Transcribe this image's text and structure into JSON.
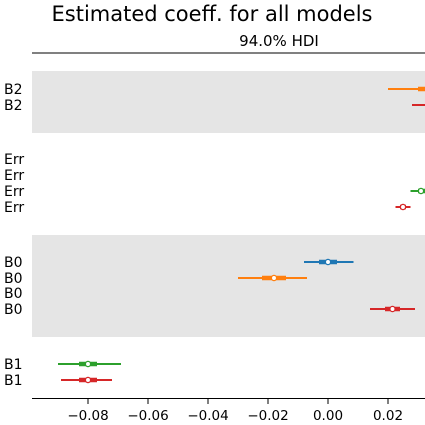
{
  "chart_data": {
    "type": "forest",
    "title": "Estimated coeff. for all models",
    "subtitle": "94.0% HDI",
    "xlim": [
      -0.098,
      0.032
    ],
    "x_ticks": [
      -0.08,
      -0.06,
      -0.04,
      -0.02,
      0.0,
      0.02
    ],
    "x_tick_labels": [
      "−0.08",
      "−0.06",
      "−0.04",
      "−0.02",
      "0.00",
      "0.02"
    ],
    "grid": false,
    "colors": {
      "blue": "#1f77b4",
      "orange": "#ff7f0e",
      "green": "#2ca02c",
      "red": "#d62728",
      "band": "#e5e5e5"
    },
    "groups": [
      {
        "name": "B2",
        "shaded": true,
        "rows": [
          {
            "label": "B2",
            "color": "#ff7f0e",
            "hdi_low": 0.02,
            "hdi_high": 0.04,
            "iqr_low": 0.03,
            "iqr_high": 0.04,
            "point": 0.04
          },
          {
            "label": "B2",
            "color": "#d62728",
            "hdi_low": 0.028,
            "hdi_high": 0.04,
            "iqr_low": 0.034,
            "iqr_high": 0.04,
            "point": 0.04
          }
        ]
      },
      {
        "name": "Err",
        "shaded": false,
        "rows": [
          {
            "label": "Err",
            "color": "#1f77b4",
            "hdi_low": null,
            "hdi_high": null,
            "iqr_low": null,
            "iqr_high": null,
            "point": null
          },
          {
            "label": "Err",
            "color": "#ff7f0e",
            "hdi_low": null,
            "hdi_high": null,
            "iqr_low": null,
            "iqr_high": null,
            "point": null
          },
          {
            "label": "Err",
            "color": "#2ca02c",
            "hdi_low": 0.0275,
            "hdi_high": 0.04,
            "iqr_low": 0.03,
            "iqr_high": 0.036,
            "point": 0.031
          },
          {
            "label": "Err",
            "color": "#d62728",
            "hdi_low": 0.0225,
            "hdi_high": 0.0275,
            "iqr_low": 0.024,
            "iqr_high": 0.026,
            "point": 0.025
          }
        ]
      },
      {
        "name": "B0",
        "shaded": true,
        "rows": [
          {
            "label": "B0",
            "color": "#1f77b4",
            "hdi_low": -0.008,
            "hdi_high": 0.0085,
            "iqr_low": -0.003,
            "iqr_high": 0.003,
            "point": 0.0
          },
          {
            "label": "B0",
            "color": "#ff7f0e",
            "hdi_low": -0.03,
            "hdi_high": -0.007,
            "iqr_low": -0.022,
            "iqr_high": -0.014,
            "point": -0.018
          },
          {
            "label": "B0",
            "color": "#2ca02c",
            "hdi_low": null,
            "hdi_high": null,
            "iqr_low": null,
            "iqr_high": null,
            "point": null
          },
          {
            "label": "B0",
            "color": "#d62728",
            "hdi_low": 0.014,
            "hdi_high": 0.029,
            "iqr_low": 0.019,
            "iqr_high": 0.024,
            "point": 0.0215
          }
        ]
      },
      {
        "name": "B1",
        "shaded": false,
        "rows": [
          {
            "label": "B1",
            "color": "#2ca02c",
            "hdi_low": -0.09,
            "hdi_high": -0.069,
            "iqr_low": -0.083,
            "iqr_high": -0.077,
            "point": -0.08
          },
          {
            "label": "B1",
            "color": "#d62728",
            "hdi_low": -0.089,
            "hdi_high": -0.072,
            "iqr_low": -0.083,
            "iqr_high": -0.077,
            "point": -0.08
          }
        ]
      }
    ]
  }
}
